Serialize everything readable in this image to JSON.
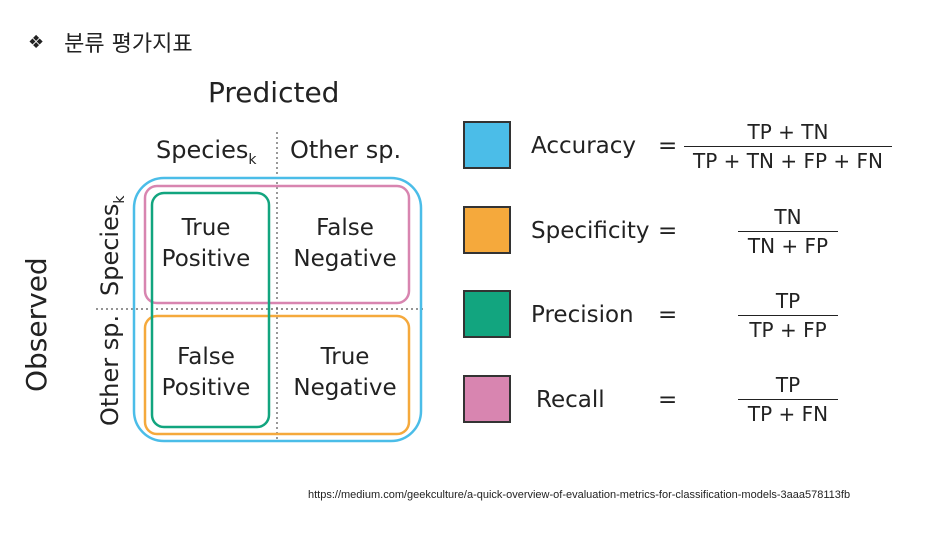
{
  "header": {
    "bullet": "❖",
    "title": "분류 평가지표"
  },
  "matrix": {
    "predicted_label": "Predicted",
    "observed_label": "Observed",
    "columns": [
      {
        "base": "Species",
        "sub": "k"
      },
      {
        "base": "Other sp.",
        "sub": ""
      }
    ],
    "rows": [
      {
        "base": "Species",
        "sub": "k"
      },
      {
        "base": "Other sp.",
        "sub": ""
      }
    ],
    "cells": [
      {
        "line1": "True",
        "line2": "Positive"
      },
      {
        "line1": "False",
        "line2": "Negative"
      },
      {
        "line1": "False",
        "line2": "Positive"
      },
      {
        "line1": "True",
        "line2": "Negative"
      }
    ],
    "colors": {
      "accuracy": "#4bbde8",
      "specificity": "#f5a93c",
      "precision": "#12a57f",
      "recall": "#d885b0"
    }
  },
  "metrics": [
    {
      "name": "Accuracy",
      "color": "#4bbde8",
      "equals": "=",
      "numerator": "TP + TN",
      "denominator": "TP + TN + FP + FN"
    },
    {
      "name": "Specificity",
      "color": "#f5a93c",
      "equals": "=",
      "numerator": "TN",
      "denominator": "TN + FP"
    },
    {
      "name": "Precision",
      "color": "#12a57f",
      "equals": "=",
      "numerator": "TP",
      "denominator": "TP + FP"
    },
    {
      "name": "Recall",
      "color": "#d885b0",
      "equals": "=",
      "numerator": "TP",
      "denominator": "TP + FN"
    }
  ],
  "source": "https://medium.com/geekculture/a-quick-overview-of-evaluation-metrics-for-classification-models-3aaa578113fb"
}
